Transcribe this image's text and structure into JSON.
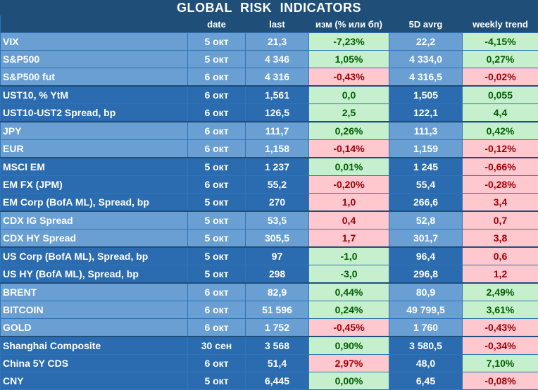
{
  "title": "GLOBAL   RISK   INDICATORS",
  "headers": {
    "name": "",
    "date": "date",
    "last": "last",
    "chg": "изм (% или бп)",
    "avg": "5D avrg",
    "trend": "weekly trend"
  },
  "rows": [
    {
      "name": "VIX",
      "date": "5 окт",
      "last": "21,3",
      "chg": "-7,23%",
      "chg_s": "pos",
      "avg": "22,2",
      "trend": "-4,15%",
      "trend_s": "pos"
    },
    {
      "name": "S&P500",
      "date": "5 окт",
      "last": "4 346",
      "chg": "1,05%",
      "chg_s": "pos",
      "avg": "4 334,0",
      "trend": "0,27%",
      "trend_s": "pos"
    },
    {
      "name": "S&P500 fut",
      "date": "6 окт",
      "last": "4 316",
      "chg": "-0,43%",
      "chg_s": "neg",
      "avg": "4 316,5",
      "trend": "-0,02%",
      "trend_s": "neg"
    },
    {
      "name": "UST10, % YtM",
      "date": "6 окт",
      "last": "1,561",
      "chg": "0,0",
      "chg_s": "pos",
      "avg": "1,505",
      "trend": "0,055",
      "trend_s": "pos"
    },
    {
      "name": "UST10-UST2 Spread, bp",
      "date": "6 окт",
      "last": "126,5",
      "chg": "2,5",
      "chg_s": "pos",
      "avg": "122,1",
      "trend": "4,4",
      "trend_s": "pos"
    },
    {
      "name": "JPY",
      "date": "6 окт",
      "last": "111,7",
      "chg": "0,26%",
      "chg_s": "pos",
      "avg": "111,3",
      "trend": "0,42%",
      "trend_s": "pos"
    },
    {
      "name": "EUR",
      "date": "6 окт",
      "last": "1,158",
      "chg": "-0,14%",
      "chg_s": "neg",
      "avg": "1,159",
      "trend": "-0,12%",
      "trend_s": "neg"
    },
    {
      "name": "MSCI EM",
      "date": "5 окт",
      "last": "1 237",
      "chg": "0,01%",
      "chg_s": "pos",
      "avg": "1 245",
      "trend": "-0,66%",
      "trend_s": "neg"
    },
    {
      "name": "EM FX (JPM)",
      "date": "6 окт",
      "last": "55,2",
      "chg": "-0,20%",
      "chg_s": "neg",
      "avg": "55,4",
      "trend": "-0,28%",
      "trend_s": "neg"
    },
    {
      "name": "EM Corp (BofA ML), Spread, bp",
      "date": "5 окт",
      "last": "270",
      "chg": "1,0",
      "chg_s": "neg",
      "avg": "266,6",
      "trend": "3,4",
      "trend_s": "neg"
    },
    {
      "name": "CDX IG Spread",
      "date": "5 окт",
      "last": "53,5",
      "chg": "0,4",
      "chg_s": "neg",
      "avg": "52,8",
      "trend": "0,7",
      "trend_s": "neg"
    },
    {
      "name": "CDX HY Spread",
      "date": "5 окт",
      "last": "305,5",
      "chg": "1,7",
      "chg_s": "neg",
      "avg": "301,7",
      "trend": "3,8",
      "trend_s": "neg"
    },
    {
      "name": "US Corp (BofA ML), Spread, bp",
      "date": "5 окт",
      "last": "97",
      "chg": "-1,0",
      "chg_s": "pos",
      "avg": "96,4",
      "trend": "0,6",
      "trend_s": "neg"
    },
    {
      "name": "US HY (BofA ML), Spread, bp",
      "date": "5 окт",
      "last": "298",
      "chg": "-3,0",
      "chg_s": "pos",
      "avg": "296,8",
      "trend": "1,2",
      "trend_s": "neg"
    },
    {
      "name": "BRENT",
      "date": "6 окт",
      "last": "82,9",
      "chg": "0,44%",
      "chg_s": "pos",
      "avg": "80,9",
      "trend": "2,49%",
      "trend_s": "pos"
    },
    {
      "name": "BITCOIN",
      "date": "6 окт",
      "last": "51 596",
      "chg": "0,24%",
      "chg_s": "pos",
      "avg": "49 799,5",
      "trend": "3,61%",
      "trend_s": "pos"
    },
    {
      "name": "GOLD",
      "date": "6 окт",
      "last": "1 752",
      "chg": "-0,45%",
      "chg_s": "neg",
      "avg": "1 760",
      "trend": "-0,43%",
      "trend_s": "neg"
    },
    {
      "name": "Shanghai Composite",
      "date": "30 сен",
      "last": "3 568",
      "chg": "0,90%",
      "chg_s": "pos",
      "avg": "3 580,5",
      "trend": "-0,34%",
      "trend_s": "neg"
    },
    {
      "name": "China 5Y CDS",
      "date": "6 окт",
      "last": "51,4",
      "chg": "2,97%",
      "chg_s": "neg",
      "avg": "48,0",
      "trend": "7,10%",
      "trend_s": "pos"
    },
    {
      "name": "CNY",
      "date": "5 окт",
      "last": "6,445",
      "chg": "0,00%",
      "chg_s": "pos",
      "avg": "6,45",
      "trend": "-0,08%",
      "trend_s": "neg"
    }
  ],
  "groups": [
    [
      0,
      2
    ],
    [
      3,
      4
    ],
    [
      5,
      6
    ],
    [
      7,
      9
    ],
    [
      10,
      11
    ],
    [
      12,
      13
    ],
    [
      14,
      16
    ],
    [
      17,
      19
    ]
  ],
  "colors": {
    "header_bg": "#1f4e79",
    "positive_bg": "#c6efce",
    "positive_text": "#006100",
    "negative_bg": "#ffc7ce",
    "negative_text": "#9c0006"
  }
}
